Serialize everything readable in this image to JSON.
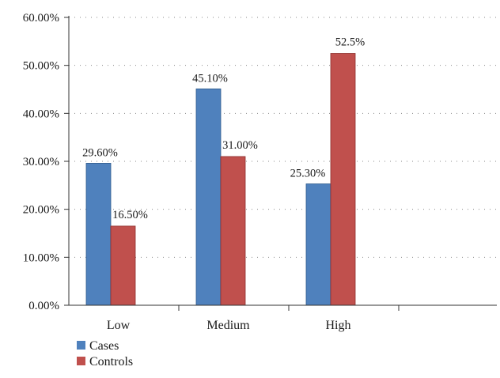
{
  "chart_data": {
    "type": "bar",
    "categories": [
      "Low",
      "Medium",
      "High"
    ],
    "series": [
      {
        "name": "Cases",
        "values": [
          29.6,
          45.1,
          25.3
        ],
        "labels": [
          "29.60%",
          "45.10%",
          "25.30%"
        ],
        "color": "#4f81bd"
      },
      {
        "name": "Controls",
        "values": [
          16.5,
          31.0,
          52.5
        ],
        "labels": [
          "16.50%",
          "31.00%",
          "52.5%"
        ],
        "color": "#c0504d"
      }
    ],
    "yticks": [
      "0.00%",
      "10.00%",
      "20.00%",
      "30.00%",
      "40.00%",
      "50.00%",
      "60.00%"
    ],
    "ylim": [
      0,
      60
    ],
    "grid": "dotted horizontal",
    "legend": "bottom-left",
    "title": "",
    "xlabel": "",
    "ylabel": ""
  }
}
